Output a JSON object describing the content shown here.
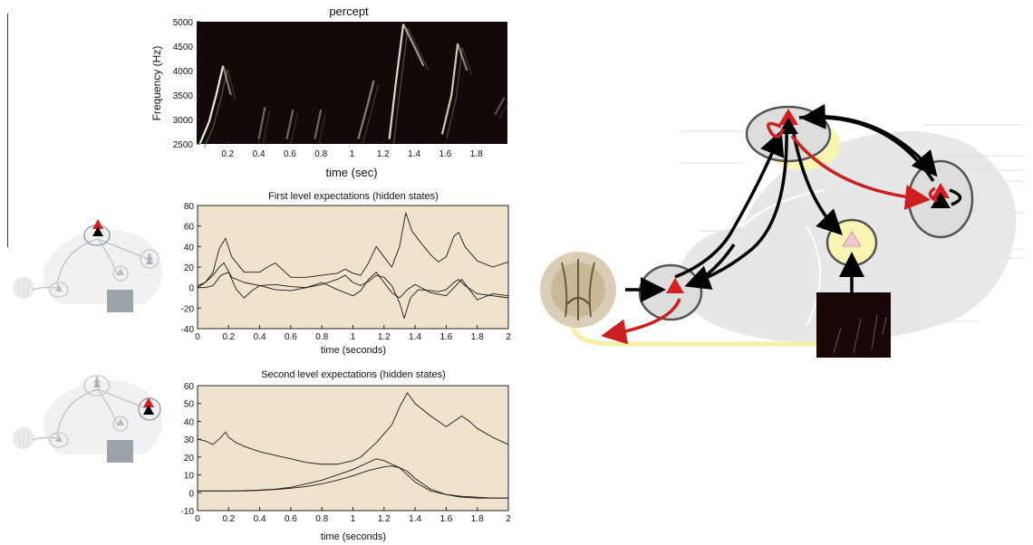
{
  "chart_data": [
    {
      "id": "percept",
      "type": "heatmap",
      "title": "percept",
      "xlabel": "time (sec)",
      "ylabel": "Frequency (Hz)",
      "xlim": [
        0,
        2
      ],
      "ylim": [
        2500,
        5000
      ],
      "xticks": [
        "0.2",
        "0.4",
        "0.6",
        "0.8",
        "1",
        "1.2",
        "1.4",
        "1.6",
        "1.8"
      ],
      "yticks": [
        "2500",
        "3000",
        "3500",
        "4000",
        "4500",
        "5000"
      ],
      "grid": false,
      "strokes": [
        {
          "x": [
            0.02,
            0.08,
            0.13,
            0.17
          ],
          "y": [
            2500,
            2950,
            3550,
            4100
          ],
          "bright": 0.95
        },
        {
          "x": [
            0.17,
            0.22
          ],
          "y": [
            4100,
            3500
          ],
          "bright": 0.6
        },
        {
          "x": [
            0.4,
            0.44
          ],
          "y": [
            2600,
            3250
          ],
          "bright": 0.5
        },
        {
          "x": [
            0.58,
            0.62
          ],
          "y": [
            2600,
            3200
          ],
          "bright": 0.5
        },
        {
          "x": [
            0.76,
            0.8
          ],
          "y": [
            2600,
            3200
          ],
          "bright": 0.5
        },
        {
          "x": [
            1.04,
            1.1,
            1.14
          ],
          "y": [
            2600,
            3300,
            3800
          ],
          "bright": 0.6
        },
        {
          "x": [
            1.24,
            1.28,
            1.33
          ],
          "y": [
            2600,
            3700,
            4950
          ],
          "bright": 0.9
        },
        {
          "x": [
            1.33,
            1.4,
            1.46
          ],
          "y": [
            4950,
            4500,
            4100
          ],
          "bright": 0.7
        },
        {
          "x": [
            1.58,
            1.64,
            1.68
          ],
          "y": [
            2700,
            3500,
            4550
          ],
          "bright": 0.85
        },
        {
          "x": [
            1.68,
            1.74
          ],
          "y": [
            4550,
            4000
          ],
          "bright": 0.6
        },
        {
          "x": [
            1.92,
            1.98
          ],
          "y": [
            3100,
            3450
          ],
          "bright": 0.4
        }
      ]
    },
    {
      "id": "first-level",
      "type": "line",
      "title": "First level expectations (hidden states)",
      "xlabel": "time (seconds)",
      "ylabel": "",
      "xlim": [
        0,
        2
      ],
      "ylim": [
        -40,
        80
      ],
      "xticks": [
        "0",
        "0.2",
        "0.4",
        "0.6",
        "0.8",
        "1",
        "1.2",
        "1.4",
        "1.6",
        "1.8",
        "2"
      ],
      "yticks": [
        "-40",
        "-20",
        "0",
        "20",
        "40",
        "60",
        "80"
      ],
      "grid": false,
      "series": [
        {
          "x": [
            0,
            0.05,
            0.1,
            0.14,
            0.18,
            0.22,
            0.3,
            0.4,
            0.45,
            0.5,
            0.55,
            0.6,
            0.7,
            0.8,
            0.9,
            0.95,
            1,
            1.05,
            1.1,
            1.15,
            1.2,
            1.25,
            1.3,
            1.34,
            1.38,
            1.43,
            1.5,
            1.55,
            1.6,
            1.65,
            1.68,
            1.72,
            1.8,
            1.9,
            2
          ],
          "y": [
            2,
            5,
            15,
            38,
            48,
            30,
            15,
            15,
            20,
            24,
            17,
            10,
            10,
            12,
            14,
            18,
            14,
            12,
            24,
            40,
            30,
            20,
            40,
            73,
            55,
            45,
            32,
            25,
            30,
            50,
            54,
            40,
            26,
            20,
            25
          ]
        },
        {
          "x": [
            0,
            0.05,
            0.1,
            0.14,
            0.17,
            0.22,
            0.3,
            0.4,
            0.5,
            0.6,
            0.7,
            0.8,
            0.9,
            0.95,
            1,
            1.05,
            1.1,
            1.15,
            1.2,
            1.25,
            1.3,
            1.33,
            1.37,
            1.42,
            1.5,
            1.55,
            1.6,
            1.65,
            1.68,
            1.72,
            1.8,
            1.9,
            2
          ],
          "y": [
            0,
            5,
            12,
            20,
            24,
            10,
            5,
            2,
            3,
            1,
            0,
            3,
            8,
            12,
            5,
            2,
            6,
            12,
            10,
            2,
            -15,
            -30,
            -10,
            -2,
            -3,
            -4,
            -2,
            5,
            8,
            2,
            -6,
            -8,
            -10
          ]
        },
        {
          "x": [
            0,
            0.05,
            0.1,
            0.15,
            0.2,
            0.25,
            0.3,
            0.35,
            0.4,
            0.5,
            0.6,
            0.7,
            0.8,
            0.9,
            1,
            1.05,
            1.1,
            1.15,
            1.2,
            1.25,
            1.3,
            1.35,
            1.4,
            1.5,
            1.6,
            1.65,
            1.7,
            1.75,
            1.8,
            1.9,
            2
          ],
          "y": [
            0,
            0,
            2,
            12,
            15,
            -2,
            -10,
            -3,
            2,
            -2,
            -3,
            0,
            5,
            -2,
            -8,
            -3,
            8,
            15,
            5,
            -5,
            -10,
            -2,
            3,
            -5,
            -8,
            0,
            8,
            -2,
            -12,
            -6,
            -8
          ]
        }
      ]
    },
    {
      "id": "second-level",
      "type": "line",
      "title": "Second level expectations (hidden states)",
      "xlabel": "time (seconds)",
      "ylabel": "",
      "xlim": [
        0,
        2
      ],
      "ylim": [
        -10,
        60
      ],
      "xticks": [
        "0",
        "0.2",
        "0.4",
        "0.6",
        "0.8",
        "1",
        "1.2",
        "1.4",
        "1.6",
        "1.8",
        "2"
      ],
      "yticks": [
        "-10",
        "0",
        "10",
        "20",
        "30",
        "40",
        "50",
        "60"
      ],
      "grid": false,
      "series": [
        {
          "x": [
            0,
            0.05,
            0.1,
            0.15,
            0.18,
            0.2,
            0.25,
            0.3,
            0.4,
            0.5,
            0.6,
            0.7,
            0.8,
            0.9,
            1,
            1.05,
            1.1,
            1.15,
            1.2,
            1.25,
            1.3,
            1.35,
            1.4,
            1.5,
            1.6,
            1.65,
            1.7,
            1.75,
            1.8,
            1.9,
            2
          ],
          "y": [
            30,
            29,
            27,
            31,
            34,
            31,
            28,
            26,
            23,
            21,
            19,
            17,
            16,
            16,
            18,
            20,
            24,
            28,
            33,
            38,
            48,
            56,
            50,
            43,
            37,
            40,
            43,
            40,
            36,
            31,
            27
          ]
        },
        {
          "x": [
            0,
            0.1,
            0.2,
            0.3,
            0.4,
            0.5,
            0.6,
            0.7,
            0.8,
            0.9,
            1,
            1.05,
            1.1,
            1.15,
            1.2,
            1.25,
            1.3,
            1.35,
            1.4,
            1.5,
            1.6,
            1.7,
            1.8,
            1.9,
            2
          ],
          "y": [
            1,
            1,
            1,
            1.2,
            1.5,
            2,
            3,
            5,
            7,
            10,
            13,
            15,
            17,
            19,
            18,
            16,
            14,
            10,
            6,
            1,
            -1,
            -2,
            -2.5,
            -3,
            -3
          ]
        },
        {
          "x": [
            0,
            0.1,
            0.2,
            0.3,
            0.4,
            0.5,
            0.6,
            0.7,
            0.8,
            0.9,
            1,
            1.1,
            1.2,
            1.25,
            1.3,
            1.35,
            1.4,
            1.5,
            1.6,
            1.7,
            1.8,
            1.9,
            2
          ],
          "y": [
            1,
            1,
            1,
            1,
            1.3,
            1.8,
            2.5,
            3.5,
            5,
            7,
            9.5,
            12.5,
            14.5,
            15,
            14,
            12,
            8,
            2,
            -1,
            -2.5,
            -3,
            -3,
            -3
          ]
        }
      ]
    }
  ],
  "colors": {
    "plot_bg": "#efe3cc",
    "spectrogram_bg": "#120a08",
    "prediction_arrow": "#cc1f1f",
    "error_arrow": "#000000",
    "pathway": "#f5f0a5",
    "neuron_red": "#d42020",
    "neuron_pink": "#f2c8d0",
    "node_gray": "#dddddd",
    "node_yellow": "#f8f4b2",
    "faded_gray": "#9aa4a8"
  },
  "icons": {
    "brain_background": "songbird-brain-icon",
    "syrinx": "syrinx-icon",
    "spectrogram_input": "spectrogram-thumbnail-icon"
  }
}
